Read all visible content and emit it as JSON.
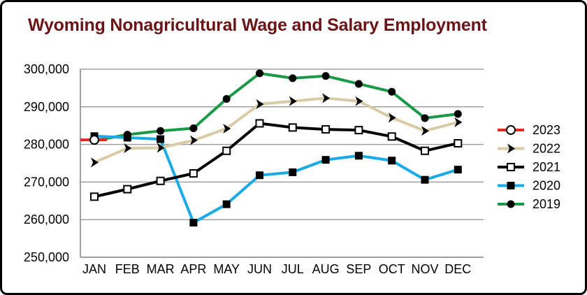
{
  "chart_data": {
    "type": "line",
    "title": "Wyoming Nonagricultural Wage and Salary Employment",
    "categories": [
      "JAN",
      "FEB",
      "MAR",
      "APR",
      "MAY",
      "JUN",
      "JUL",
      "AUG",
      "SEP",
      "OCT",
      "NOV",
      "DEC"
    ],
    "ylim": [
      250000,
      300000
    ],
    "yticks": [
      250000,
      260000,
      270000,
      280000,
      290000,
      300000
    ],
    "ytick_labels": [
      "250,000",
      "260,000",
      "270,000",
      "280,000",
      "290,000",
      "300,000"
    ],
    "grid": true,
    "legend_position": "right",
    "series": [
      {
        "name": "2023",
        "color": "#e8262a",
        "marker": "circle-open",
        "values": [
          281200,
          null,
          null,
          null,
          null,
          null,
          null,
          null,
          null,
          null,
          null,
          null
        ]
      },
      {
        "name": "2022",
        "color": "#d8cba6",
        "marker": "chevron-right",
        "values": [
          275200,
          279000,
          279100,
          281100,
          284200,
          290700,
          291500,
          292300,
          291500,
          287100,
          283600,
          285900
        ]
      },
      {
        "name": "2021",
        "color": "#000000",
        "marker": "square-open",
        "values": [
          266100,
          268100,
          270300,
          272300,
          278300,
          285600,
          284500,
          284000,
          283800,
          282100,
          278300,
          280300
        ]
      },
      {
        "name": "2020",
        "color": "#1aabe6",
        "marker": "square-filled",
        "values": [
          282200,
          281800,
          281400,
          259200,
          264100,
          271800,
          272600,
          275900,
          277000,
          275700,
          270600,
          273300
        ]
      },
      {
        "name": "2019",
        "color": "#1a9a48",
        "marker": "circle-filled",
        "values": [
          281000,
          282600,
          283600,
          284300,
          292100,
          298900,
          297600,
          298200,
          296100,
          294000,
          287000,
          288100
        ]
      }
    ]
  }
}
